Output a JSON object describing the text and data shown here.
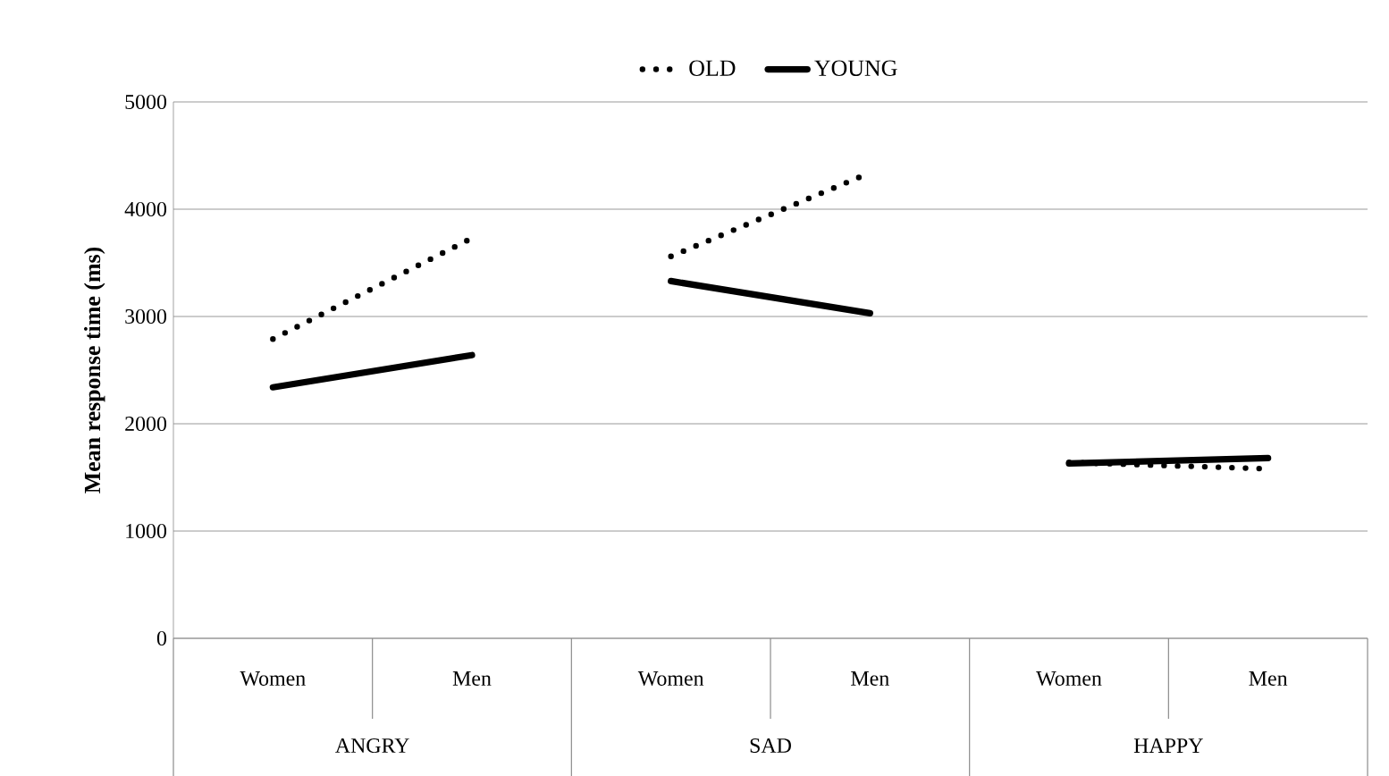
{
  "chart_data": {
    "type": "line",
    "ylabel": "Mean response time (ms)",
    "categories": [
      "Women",
      "Men",
      "Women",
      "Men",
      "Women",
      "Men"
    ],
    "annotations": [
      "ANGRY",
      "SAD",
      "HAPPY"
    ],
    "series": [
      {
        "name": "OLD",
        "color": "#000000",
        "line_style": "dotted",
        "values": [
          2790,
          3730,
          3560,
          4340,
          1640,
          1580
        ]
      },
      {
        "name": "YOUNG",
        "color": "#000000",
        "line_style": "solid",
        "values": [
          2340,
          2640,
          3330,
          3030,
          1630,
          1680
        ]
      }
    ],
    "ylim": [
      0,
      5000
    ],
    "yticks": [
      0,
      1000,
      2000,
      3000,
      4000,
      5000
    ],
    "grid": "y",
    "legend": "top",
    "marker": "none"
  }
}
